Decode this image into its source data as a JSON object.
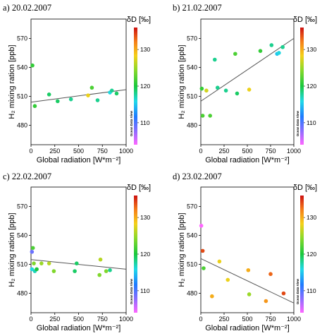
{
  "chart_data": [
    {
      "type": "scatter",
      "title": "a) 20.02.2007",
      "xlabel": "Global radiation [W*m⁻²]",
      "ylabel": "H₂ mixing ration [ppb]",
      "xlim": [
        0,
        1000
      ],
      "ylim": [
        460,
        590
      ],
      "xticks": [
        "0",
        "250",
        "500",
        "750",
        "1000"
      ],
      "yticks": [
        "480",
        "510",
        "540",
        "570"
      ],
      "colorbar": {
        "title": "δD [‰]",
        "ticks": [
          "110",
          "120",
          "130"
        ],
        "range": [
          104,
          136
        ],
        "watermark": "Ocean Data View"
      },
      "points": [
        {
          "x": 15,
          "y": 542,
          "c": 121
        },
        {
          "x": 40,
          "y": 500,
          "c": 121
        },
        {
          "x": 190,
          "y": 512,
          "c": 119
        },
        {
          "x": 280,
          "y": 505,
          "c": 119
        },
        {
          "x": 420,
          "y": 507,
          "c": 118
        },
        {
          "x": 600,
          "y": 511,
          "c": 128
        },
        {
          "x": 640,
          "y": 519,
          "c": 122
        },
        {
          "x": 700,
          "y": 506,
          "c": 118
        },
        {
          "x": 830,
          "y": 514,
          "c": 116
        },
        {
          "x": 850,
          "y": 516,
          "c": 118
        },
        {
          "x": 900,
          "y": 513,
          "c": 119
        }
      ],
      "trend": [
        [
          0,
          504
        ],
        [
          1000,
          517
        ]
      ]
    },
    {
      "type": "scatter",
      "title": "b) 21.02.2007",
      "xlabel": "Global radiation [W*m⁻²]",
      "ylabel": "H₂ mixing ration [ppb]",
      "xlim": [
        0,
        1000
      ],
      "ylim": [
        460,
        590
      ],
      "xticks": [
        "0",
        "250",
        "500",
        "750",
        "1000"
      ],
      "yticks": [
        "480",
        "510",
        "540",
        "570"
      ],
      "colorbar": {
        "title": "δD [‰]",
        "ticks": [
          "110",
          "120",
          "130"
        ],
        "range": [
          104,
          136
        ],
        "watermark": "Ocean Data View"
      },
      "points": [
        {
          "x": 10,
          "y": 518,
          "c": 121
        },
        {
          "x": 20,
          "y": 490,
          "c": 122
        },
        {
          "x": 60,
          "y": 516,
          "c": 127
        },
        {
          "x": 100,
          "y": 490,
          "c": 122
        },
        {
          "x": 150,
          "y": 548,
          "c": 118
        },
        {
          "x": 180,
          "y": 519,
          "c": 118
        },
        {
          "x": 270,
          "y": 516,
          "c": 118
        },
        {
          "x": 370,
          "y": 554,
          "c": 122
        },
        {
          "x": 390,
          "y": 513,
          "c": 119
        },
        {
          "x": 520,
          "y": 517,
          "c": 128
        },
        {
          "x": 640,
          "y": 557,
          "c": 121
        },
        {
          "x": 760,
          "y": 563,
          "c": 118
        },
        {
          "x": 820,
          "y": 554,
          "c": 115
        },
        {
          "x": 840,
          "y": 555,
          "c": 116
        },
        {
          "x": 880,
          "y": 561,
          "c": 118
        }
      ],
      "trend": [
        [
          0,
          505
        ],
        [
          1000,
          570
        ]
      ]
    },
    {
      "type": "scatter",
      "title": "c) 22.02.2007",
      "xlabel": "Global radiation [W*m⁻²]",
      "ylabel": "H₂ mixing ration [ppb]",
      "xlim": [
        0,
        1000
      ],
      "ylim": [
        460,
        590
      ],
      "xticks": [
        "0",
        "250",
        "500",
        "750",
        "1000"
      ],
      "yticks": [
        "480",
        "510",
        "540",
        "570"
      ],
      "colorbar": {
        "title": "δD [‰]",
        "ticks": [
          "110",
          "120",
          "130"
        ],
        "range": [
          104,
          136
        ],
        "watermark": "Ocean Data View"
      },
      "points": [
        {
          "x": 10,
          "y": 523,
          "c": 109
        },
        {
          "x": 10,
          "y": 505,
          "c": 116
        },
        {
          "x": 20,
          "y": 527,
          "c": 122
        },
        {
          "x": 30,
          "y": 511,
          "c": 124
        },
        {
          "x": 40,
          "y": 503,
          "c": 117
        },
        {
          "x": 60,
          "y": 505,
          "c": 120
        },
        {
          "x": 110,
          "y": 511,
          "c": 125
        },
        {
          "x": 190,
          "y": 511,
          "c": 126
        },
        {
          "x": 240,
          "y": 503,
          "c": 124
        },
        {
          "x": 460,
          "y": 503,
          "c": 119
        },
        {
          "x": 480,
          "y": 511,
          "c": 119
        },
        {
          "x": 720,
          "y": 499,
          "c": 124
        },
        {
          "x": 730,
          "y": 515,
          "c": 126
        },
        {
          "x": 790,
          "y": 503,
          "c": 124
        },
        {
          "x": 830,
          "y": 504,
          "c": 118
        }
      ],
      "trend": [
        [
          0,
          515
        ],
        [
          1000,
          505
        ]
      ]
    },
    {
      "type": "scatter",
      "title": "d) 23.02.2007",
      "xlabel": "Global radiation [W*m⁻²]",
      "ylabel": "H₂ mixing ration [ppb]",
      "xlim": [
        0,
        1000
      ],
      "ylim": [
        460,
        590
      ],
      "xticks": [
        "0",
        "250",
        "500",
        "750",
        "1000"
      ],
      "yticks": [
        "480",
        "510",
        "540",
        "570"
      ],
      "colorbar": {
        "title": "δD [‰]",
        "ticks": [
          "110",
          "120",
          "130"
        ],
        "range": [
          104,
          136
        ],
        "watermark": "Ocean Data View"
      },
      "points": [
        {
          "x": 5,
          "y": 550,
          "c": 104
        },
        {
          "x": 20,
          "y": 524,
          "c": 134
        },
        {
          "x": 30,
          "y": 506,
          "c": 122
        },
        {
          "x": 120,
          "y": 477,
          "c": 130
        },
        {
          "x": 200,
          "y": 513,
          "c": 128
        },
        {
          "x": 290,
          "y": 494,
          "c": 128
        },
        {
          "x": 510,
          "y": 504,
          "c": 130
        },
        {
          "x": 520,
          "y": 479,
          "c": 125
        },
        {
          "x": 700,
          "y": 472,
          "c": 131
        },
        {
          "x": 750,
          "y": 500,
          "c": 133
        },
        {
          "x": 890,
          "y": 480,
          "c": 134
        }
      ],
      "trend": [
        [
          0,
          516
        ],
        [
          1000,
          470
        ]
      ]
    }
  ]
}
